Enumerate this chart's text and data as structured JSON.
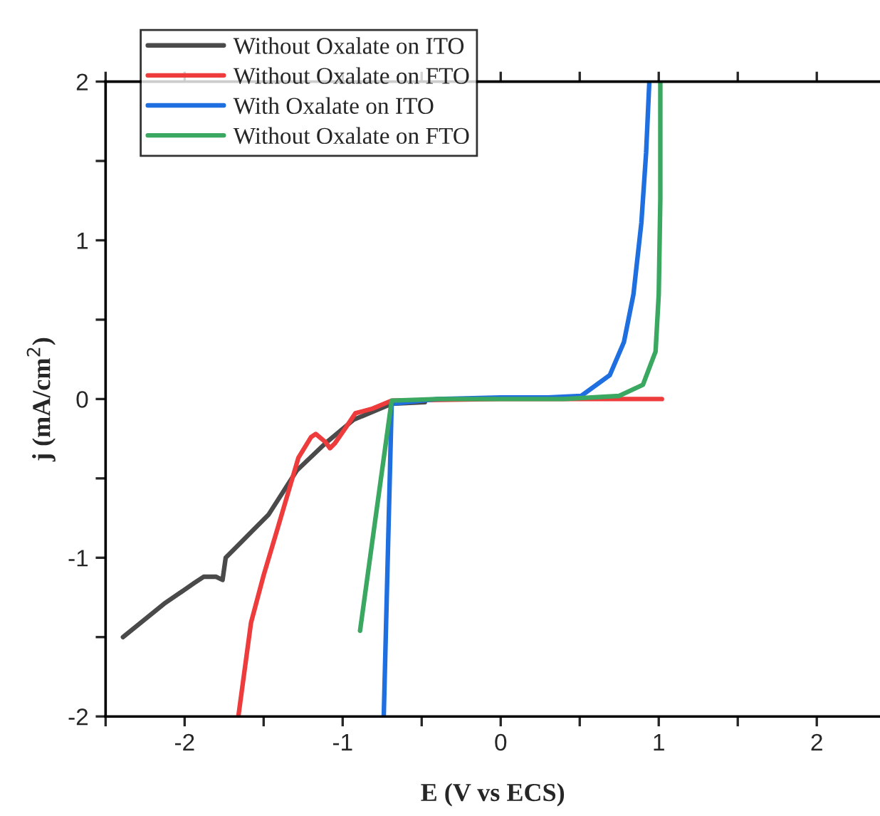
{
  "chart_data": {
    "type": "line",
    "xlabel": "E (V vs ECS)",
    "ylabel": "j (mA/cm$^{2}$)",
    "xlim": [
      -2.5,
      2.4
    ],
    "ylim": [
      -2,
      2
    ],
    "xticks": [
      {
        "value": -2.5,
        "label": null
      },
      -2,
      {
        "value": -1.5,
        "label": null
      },
      -1,
      {
        "value": -0.5,
        "label": null
      },
      0,
      {
        "value": 0.5,
        "label": null
      },
      1,
      {
        "value": 1.5,
        "label": null
      },
      2
    ],
    "yticks": [
      -2,
      {
        "value": -1.5,
        "label": null
      },
      -1,
      {
        "value": -0.5,
        "label": null
      },
      0,
      {
        "value": 0.5,
        "label": null
      },
      1,
      {
        "value": 1.5,
        "label": null
      },
      2
    ],
    "grid": false,
    "legend": "top left",
    "line_style": "solid",
    "marker": "none",
    "series": [
      {
        "name": "Without Oxalate on ITO",
        "color": "#4a4a4a",
        "x": [
          -2.39,
          -2.13,
          -1.94,
          -1.88,
          -1.8,
          -1.76,
          -1.74,
          -1.59,
          -1.47,
          -1.29,
          -1.11,
          -0.93,
          -0.69,
          -0.48
        ],
        "values": [
          -1.5,
          -1.29,
          -1.16,
          -1.12,
          -1.12,
          -1.14,
          -1.0,
          -0.85,
          -0.73,
          -0.45,
          -0.28,
          -0.13,
          -0.03,
          -0.02
        ]
      },
      {
        "name": "Without Oxalate on FTO",
        "color": "#ee3b3b",
        "x": [
          -1.66,
          -1.58,
          -1.5,
          -1.41,
          -1.28,
          -1.2,
          -1.17,
          -1.11,
          -1.08,
          -1.05,
          -0.98,
          -0.92,
          -0.81,
          -0.69,
          0.0,
          0.5,
          1.02
        ],
        "values": [
          -2.0,
          -1.41,
          -1.11,
          -0.81,
          -0.37,
          -0.24,
          -0.22,
          -0.27,
          -0.31,
          -0.28,
          -0.18,
          -0.09,
          -0.06,
          -0.01,
          0.0,
          0.0,
          0.0
        ]
      },
      {
        "name": "With Oxalate on ITO",
        "color": "#1f6fe0",
        "x": [
          -0.74,
          -0.69,
          -0.4,
          0.0,
          0.3,
          0.51,
          0.69,
          0.78,
          0.84,
          0.89,
          0.92,
          0.94
        ],
        "values": [
          -2.0,
          -0.03,
          0.0,
          0.01,
          0.01,
          0.02,
          0.15,
          0.36,
          0.66,
          1.11,
          1.55,
          1.99
        ]
      },
      {
        "name": "Without Oxalate on FTO",
        "color": "#3aa860",
        "x": [
          -0.89,
          -0.69,
          -0.4,
          0.0,
          0.4,
          0.75,
          0.9,
          0.98,
          1.0,
          1.01,
          1.01
        ],
        "values": [
          -1.46,
          -0.01,
          0.0,
          0.0,
          0.0,
          0.02,
          0.09,
          0.3,
          0.66,
          1.26,
          1.99
        ]
      }
    ]
  }
}
